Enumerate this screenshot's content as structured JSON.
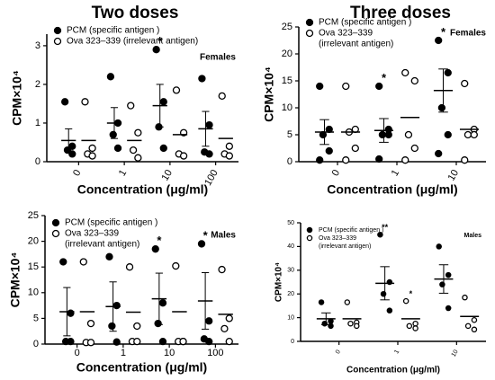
{
  "chart_data": [
    {
      "type": "strip",
      "title": "Two doses",
      "label": "Females",
      "ylabel": "CPM×10⁴",
      "xlabel": "Concentration (μg/ml)",
      "categories": [
        "0",
        "1",
        "10",
        "100"
      ],
      "ylim": [
        0,
        3.3
      ],
      "yticks": [
        0,
        1,
        2,
        3
      ],
      "series": [
        {
          "name": [
            "PCM (specific antigen )"
          ],
          "marker": "filled",
          "values": [
            [
              1.55,
              0.4,
              0.3,
              0.2
            ],
            [
              2.2,
              1.0,
              0.7,
              0.35
            ],
            [
              2.9,
              1.55,
              0.9,
              0.35
            ],
            [
              2.15,
              0.95,
              0.25,
              0.2
            ]
          ],
          "mean": [
            0.55,
            1.0,
            1.45,
            0.85
          ],
          "sem": [
            0.3,
            0.4,
            0.55,
            0.45
          ]
        },
        {
          "name": [
            "Ova 323–339 (irrelevant antigen)"
          ],
          "marker": "open",
          "values": [
            [
              1.55,
              0.35,
              0.2,
              0.15
            ],
            [
              1.45,
              0.75,
              0.3,
              0.1
            ],
            [
              1.85,
              0.75,
              0.2,
              0.15
            ],
            [
              1.7,
              0.4,
              0.2,
              0.15
            ]
          ],
          "mean": [
            0.55,
            0.55,
            0.7,
            0.6
          ]
        }
      ],
      "annotations": [
        {
          "text": "*",
          "category": "10",
          "series": 0
        }
      ]
    },
    {
      "type": "strip",
      "title": "Three doses",
      "label": "Females",
      "ylabel": "CPM×10⁴",
      "xlabel": "Concentration (μg/ml)",
      "categories": [
        "0",
        "1",
        "10"
      ],
      "ylim": [
        0,
        25
      ],
      "yticks": [
        0,
        5,
        10,
        15,
        20,
        25
      ],
      "series": [
        {
          "name": [
            "PCM (specific antigen )"
          ],
          "marker": "filled",
          "values": [
            [
              14,
              6,
              5,
              2,
              0.3
            ],
            [
              14,
              6,
              5,
              5,
              0.5
            ],
            [
              22.5,
              16.5,
              10,
              5,
              1.5
            ]
          ],
          "mean": [
            5.5,
            5.8,
            13.2
          ],
          "sem": [
            2.3,
            2.2,
            4
          ]
        },
        {
          "name": [
            "Ova 323–339",
            "(irrelevant antigen)"
          ],
          "marker": "open",
          "values": [
            [
              14,
              6,
              5.5,
              2.5,
              0.3
            ],
            [
              16.5,
              15,
              5,
              2.5,
              0.3
            ],
            [
              14.5,
              6,
              5,
              5,
              0.3
            ]
          ],
          "mean": [
            5.5,
            8.2,
            6
          ]
        }
      ],
      "annotations": [
        {
          "text": "*",
          "category": "1",
          "series": 0
        },
        {
          "text": "*",
          "category": "10",
          "series": 0
        }
      ]
    },
    {
      "type": "strip",
      "label": "Males",
      "ylabel": "CPM×10⁴",
      "xlabel": "Concentration (μg/ml)",
      "categories": [
        "0",
        "1",
        "10",
        "100"
      ],
      "ylim": [
        0,
        25
      ],
      "yticks": [
        0,
        5,
        10,
        15,
        20,
        25
      ],
      "series": [
        {
          "name": [
            "PCM (specific antigen )"
          ],
          "marker": "filled",
          "values": [
            [
              16,
              6,
              0.5,
              0.5
            ],
            [
              17,
              7.5,
              3.5,
              0.4
            ],
            [
              18.5,
              8,
              4,
              0.5
            ],
            [
              19.5,
              4.5,
              1,
              0.5
            ]
          ],
          "mean": [
            6.3,
            7.3,
            8.8,
            8.4
          ],
          "sem": [
            4.7,
            4.8,
            5,
            5.5
          ]
        },
        {
          "name": [
            "Ova 323–339",
            "(irrelevant antigen)"
          ],
          "marker": "open",
          "values": [
            [
              16,
              4,
              0.3,
              0.3
            ],
            [
              15,
              3.5,
              0.5,
              0.5
            ],
            [
              15.2,
              0.5,
              0.5,
              0.5
            ],
            [
              14.5,
              5,
              3,
              0.5
            ]
          ],
          "mean": [
            6.3,
            6.2,
            6.3,
            5.8
          ]
        }
      ],
      "annotations": [
        {
          "text": "*",
          "category": "10",
          "series": 0
        },
        {
          "text": "*",
          "category": "100",
          "series": 0
        }
      ]
    },
    {
      "type": "strip",
      "label": "Males",
      "ylabel": "CPM×10⁴",
      "xlabel": "Concentration (μg/ml)",
      "categories": [
        "0",
        "1",
        "10"
      ],
      "ylim": [
        0,
        50
      ],
      "yticks": [
        0,
        10,
        20,
        30,
        40,
        50
      ],
      "series": [
        {
          "name": [
            "PCM (specific antigen )"
          ],
          "marker": "filled",
          "values": [
            [
              16.5,
              8.5,
              7.5,
              6.5
            ],
            [
              45,
              25,
              20,
              13
            ],
            [
              40,
              28,
              24,
              14
            ]
          ],
          "mean": [
            9.5,
            24.5,
            26.3
          ],
          "sem": [
            2.5,
            7,
            6
          ]
        },
        {
          "name": [
            "Ova 323–339",
            "(irrelevant antigen)"
          ],
          "marker": "open",
          "values": [
            [
              16.5,
              8,
              7.5,
              6.5
            ],
            [
              17,
              7.5,
              6.5,
              5.5
            ],
            [
              18.5,
              9,
              6.5,
              5
            ]
          ],
          "mean": [
            9.5,
            9.5,
            10.5
          ]
        }
      ],
      "annotations": [
        {
          "text": "**",
          "category": "1",
          "series": 0
        },
        {
          "text": "*",
          "category": "1",
          "series": 1
        }
      ]
    }
  ]
}
